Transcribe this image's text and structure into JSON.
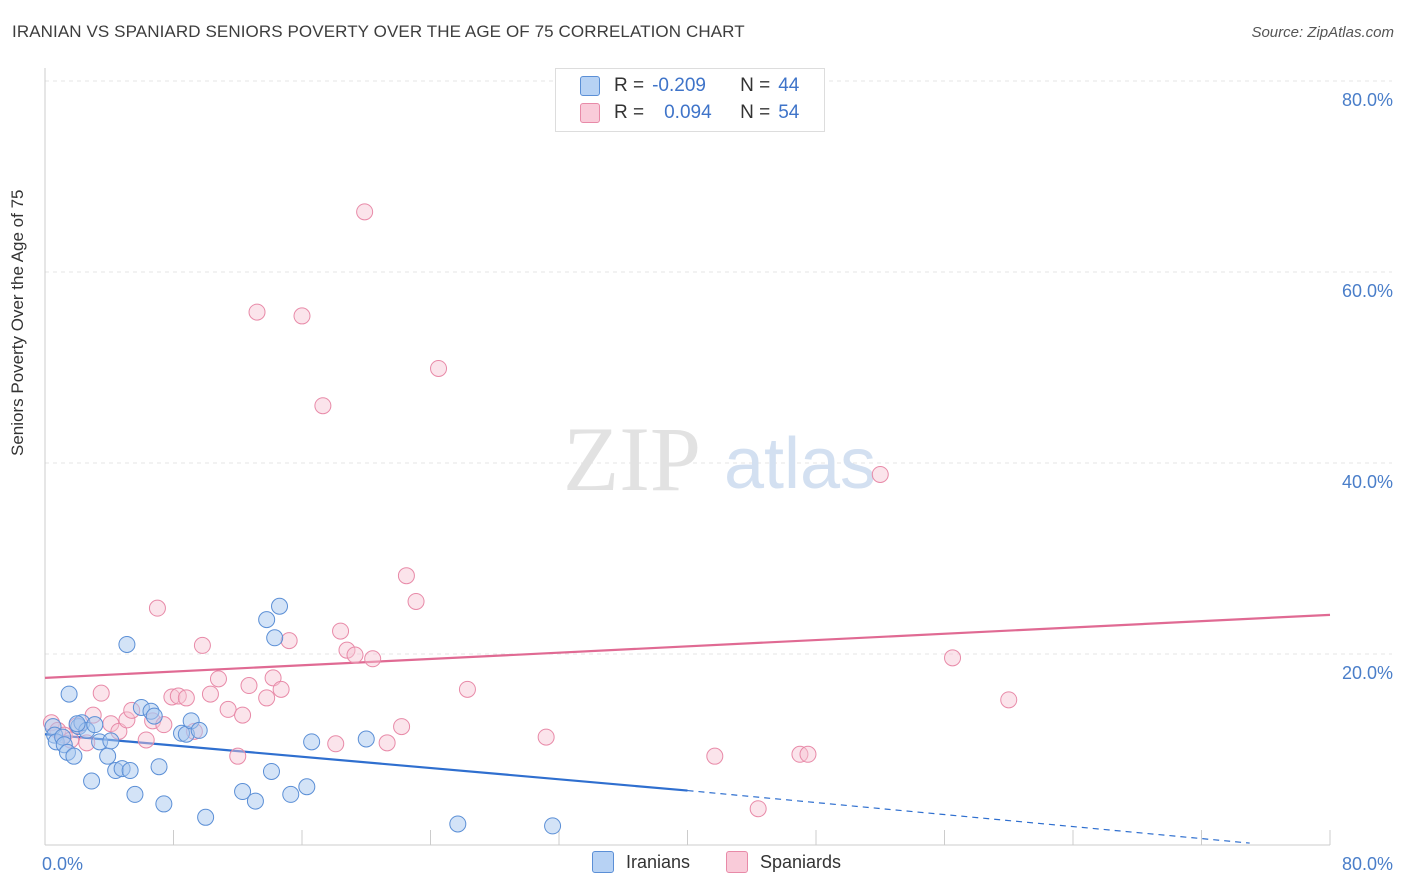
{
  "title": "IRANIAN VS SPANIARD SENIORS POVERTY OVER THE AGE OF 75 CORRELATION CHART",
  "source": "Source: ZipAtlas.com",
  "watermark": {
    "zip": "ZIP",
    "atlas": "atlas"
  },
  "legend": {
    "row1": {
      "r_label": "R =",
      "r_value": "-0.209",
      "n_label": "N =",
      "n_value": "44"
    },
    "row2": {
      "r_label": "R =",
      "r_value": "0.094",
      "n_label": "N =",
      "n_value": "54"
    }
  },
  "colors": {
    "iranians_fill": "#a8c8f0",
    "iranians_stroke": "#5b8fd6",
    "iranians_line": "#2f6fcf",
    "spaniards_fill": "#f7c3d3",
    "spaniards_stroke": "#e88aa8",
    "spaniards_line": "#e06a93",
    "tick_text": "#4a7ec9"
  },
  "chart_data": {
    "type": "scatter",
    "title": "IRANIAN VS SPANIARD SENIORS POVERTY OVER THE AGE OF 75 CORRELATION CHART",
    "xlabel": "",
    "ylabel": "Seniors Poverty Over the Age of 75",
    "xlim": [
      0,
      80
    ],
    "ylim": [
      0,
      80
    ],
    "x_tick_labels": [
      "0.0%",
      "80.0%"
    ],
    "y_tick_labels": [
      "20.0%",
      "40.0%",
      "60.0%",
      "80.0%"
    ],
    "y_ticks": [
      20,
      40,
      60,
      80
    ],
    "grid": true,
    "series": [
      {
        "name": "Iranians",
        "r": -0.209,
        "n": 44,
        "points": [
          [
            0.5,
            12.4
          ],
          [
            0.6,
            11.5
          ],
          [
            0.7,
            10.8
          ],
          [
            1.1,
            11.3
          ],
          [
            1.2,
            10.5
          ],
          [
            1.4,
            9.7
          ],
          [
            1.5,
            15.8
          ],
          [
            1.8,
            9.3
          ],
          [
            2.1,
            12.4
          ],
          [
            2.3,
            12.8
          ],
          [
            2.6,
            12.0
          ],
          [
            2.9,
            6.7
          ],
          [
            3.1,
            12.6
          ],
          [
            3.4,
            10.8
          ],
          [
            3.9,
            9.3
          ],
          [
            4.1,
            10.9
          ],
          [
            4.4,
            7.8
          ],
          [
            4.8,
            8.0
          ],
          [
            5.1,
            21.0
          ],
          [
            5.3,
            7.8
          ],
          [
            5.6,
            5.3
          ],
          [
            6.0,
            14.4
          ],
          [
            6.6,
            14.0
          ],
          [
            6.8,
            13.5
          ],
          [
            7.1,
            8.2
          ],
          [
            7.4,
            4.3
          ],
          [
            8.5,
            11.7
          ],
          [
            8.8,
            11.6
          ],
          [
            9.1,
            13.0
          ],
          [
            9.6,
            12.0
          ],
          [
            10.0,
            2.9
          ],
          [
            12.3,
            5.6
          ],
          [
            13.1,
            4.6
          ],
          [
            13.8,
            23.6
          ],
          [
            14.1,
            7.7
          ],
          [
            14.3,
            21.7
          ],
          [
            14.6,
            25.0
          ],
          [
            15.3,
            5.3
          ],
          [
            16.3,
            6.1
          ],
          [
            16.6,
            10.8
          ],
          [
            20.0,
            11.1
          ],
          [
            25.7,
            2.2
          ],
          [
            31.6,
            2.0
          ],
          [
            2.0,
            12.7
          ]
        ]
      },
      {
        "name": "Spaniards",
        "r": 0.094,
        "n": 54,
        "points": [
          [
            0.4,
            12.8
          ],
          [
            0.8,
            12.0
          ],
          [
            1.2,
            11.5
          ],
          [
            1.6,
            11.0
          ],
          [
            2.0,
            12.5
          ],
          [
            2.6,
            10.7
          ],
          [
            3.0,
            13.6
          ],
          [
            3.5,
            15.9
          ],
          [
            4.1,
            12.7
          ],
          [
            4.6,
            11.9
          ],
          [
            5.1,
            13.1
          ],
          [
            5.4,
            14.1
          ],
          [
            6.3,
            11.0
          ],
          [
            6.7,
            13.0
          ],
          [
            7.0,
            24.8
          ],
          [
            7.4,
            12.6
          ],
          [
            7.9,
            15.5
          ],
          [
            8.3,
            15.6
          ],
          [
            8.8,
            15.4
          ],
          [
            9.3,
            11.9
          ],
          [
            9.8,
            20.9
          ],
          [
            10.3,
            15.8
          ],
          [
            10.8,
            17.4
          ],
          [
            11.4,
            14.2
          ],
          [
            12.0,
            9.3
          ],
          [
            12.3,
            13.6
          ],
          [
            12.7,
            16.7
          ],
          [
            13.2,
            55.8
          ],
          [
            13.8,
            15.4
          ],
          [
            14.2,
            17.5
          ],
          [
            14.7,
            16.3
          ],
          [
            15.2,
            21.4
          ],
          [
            16.0,
            55.4
          ],
          [
            17.3,
            46.0
          ],
          [
            18.1,
            10.6
          ],
          [
            18.4,
            22.4
          ],
          [
            18.8,
            20.4
          ],
          [
            19.3,
            19.9
          ],
          [
            19.9,
            66.3
          ],
          [
            20.4,
            19.5
          ],
          [
            21.3,
            10.7
          ],
          [
            22.2,
            12.4
          ],
          [
            22.5,
            28.2
          ],
          [
            23.1,
            25.5
          ],
          [
            24.5,
            49.9
          ],
          [
            26.3,
            16.3
          ],
          [
            31.2,
            11.3
          ],
          [
            41.7,
            9.3
          ],
          [
            44.4,
            3.8
          ],
          [
            47.0,
            9.5
          ],
          [
            47.5,
            9.5
          ],
          [
            52.0,
            38.8
          ],
          [
            56.5,
            19.6
          ],
          [
            60.0,
            15.2
          ]
        ]
      }
    ],
    "trendlines": [
      {
        "series": "Iranians",
        "from": [
          0,
          11.6
        ],
        "to_solid": [
          40,
          5.7
        ],
        "to_dashed": [
          75,
          0.2
        ]
      },
      {
        "series": "Spaniards",
        "from": [
          0,
          17.5
        ],
        "to": [
          80,
          24.1
        ]
      }
    ]
  },
  "bottom_legend": {
    "iranians": "Iranians",
    "spaniards": "Spaniards"
  }
}
